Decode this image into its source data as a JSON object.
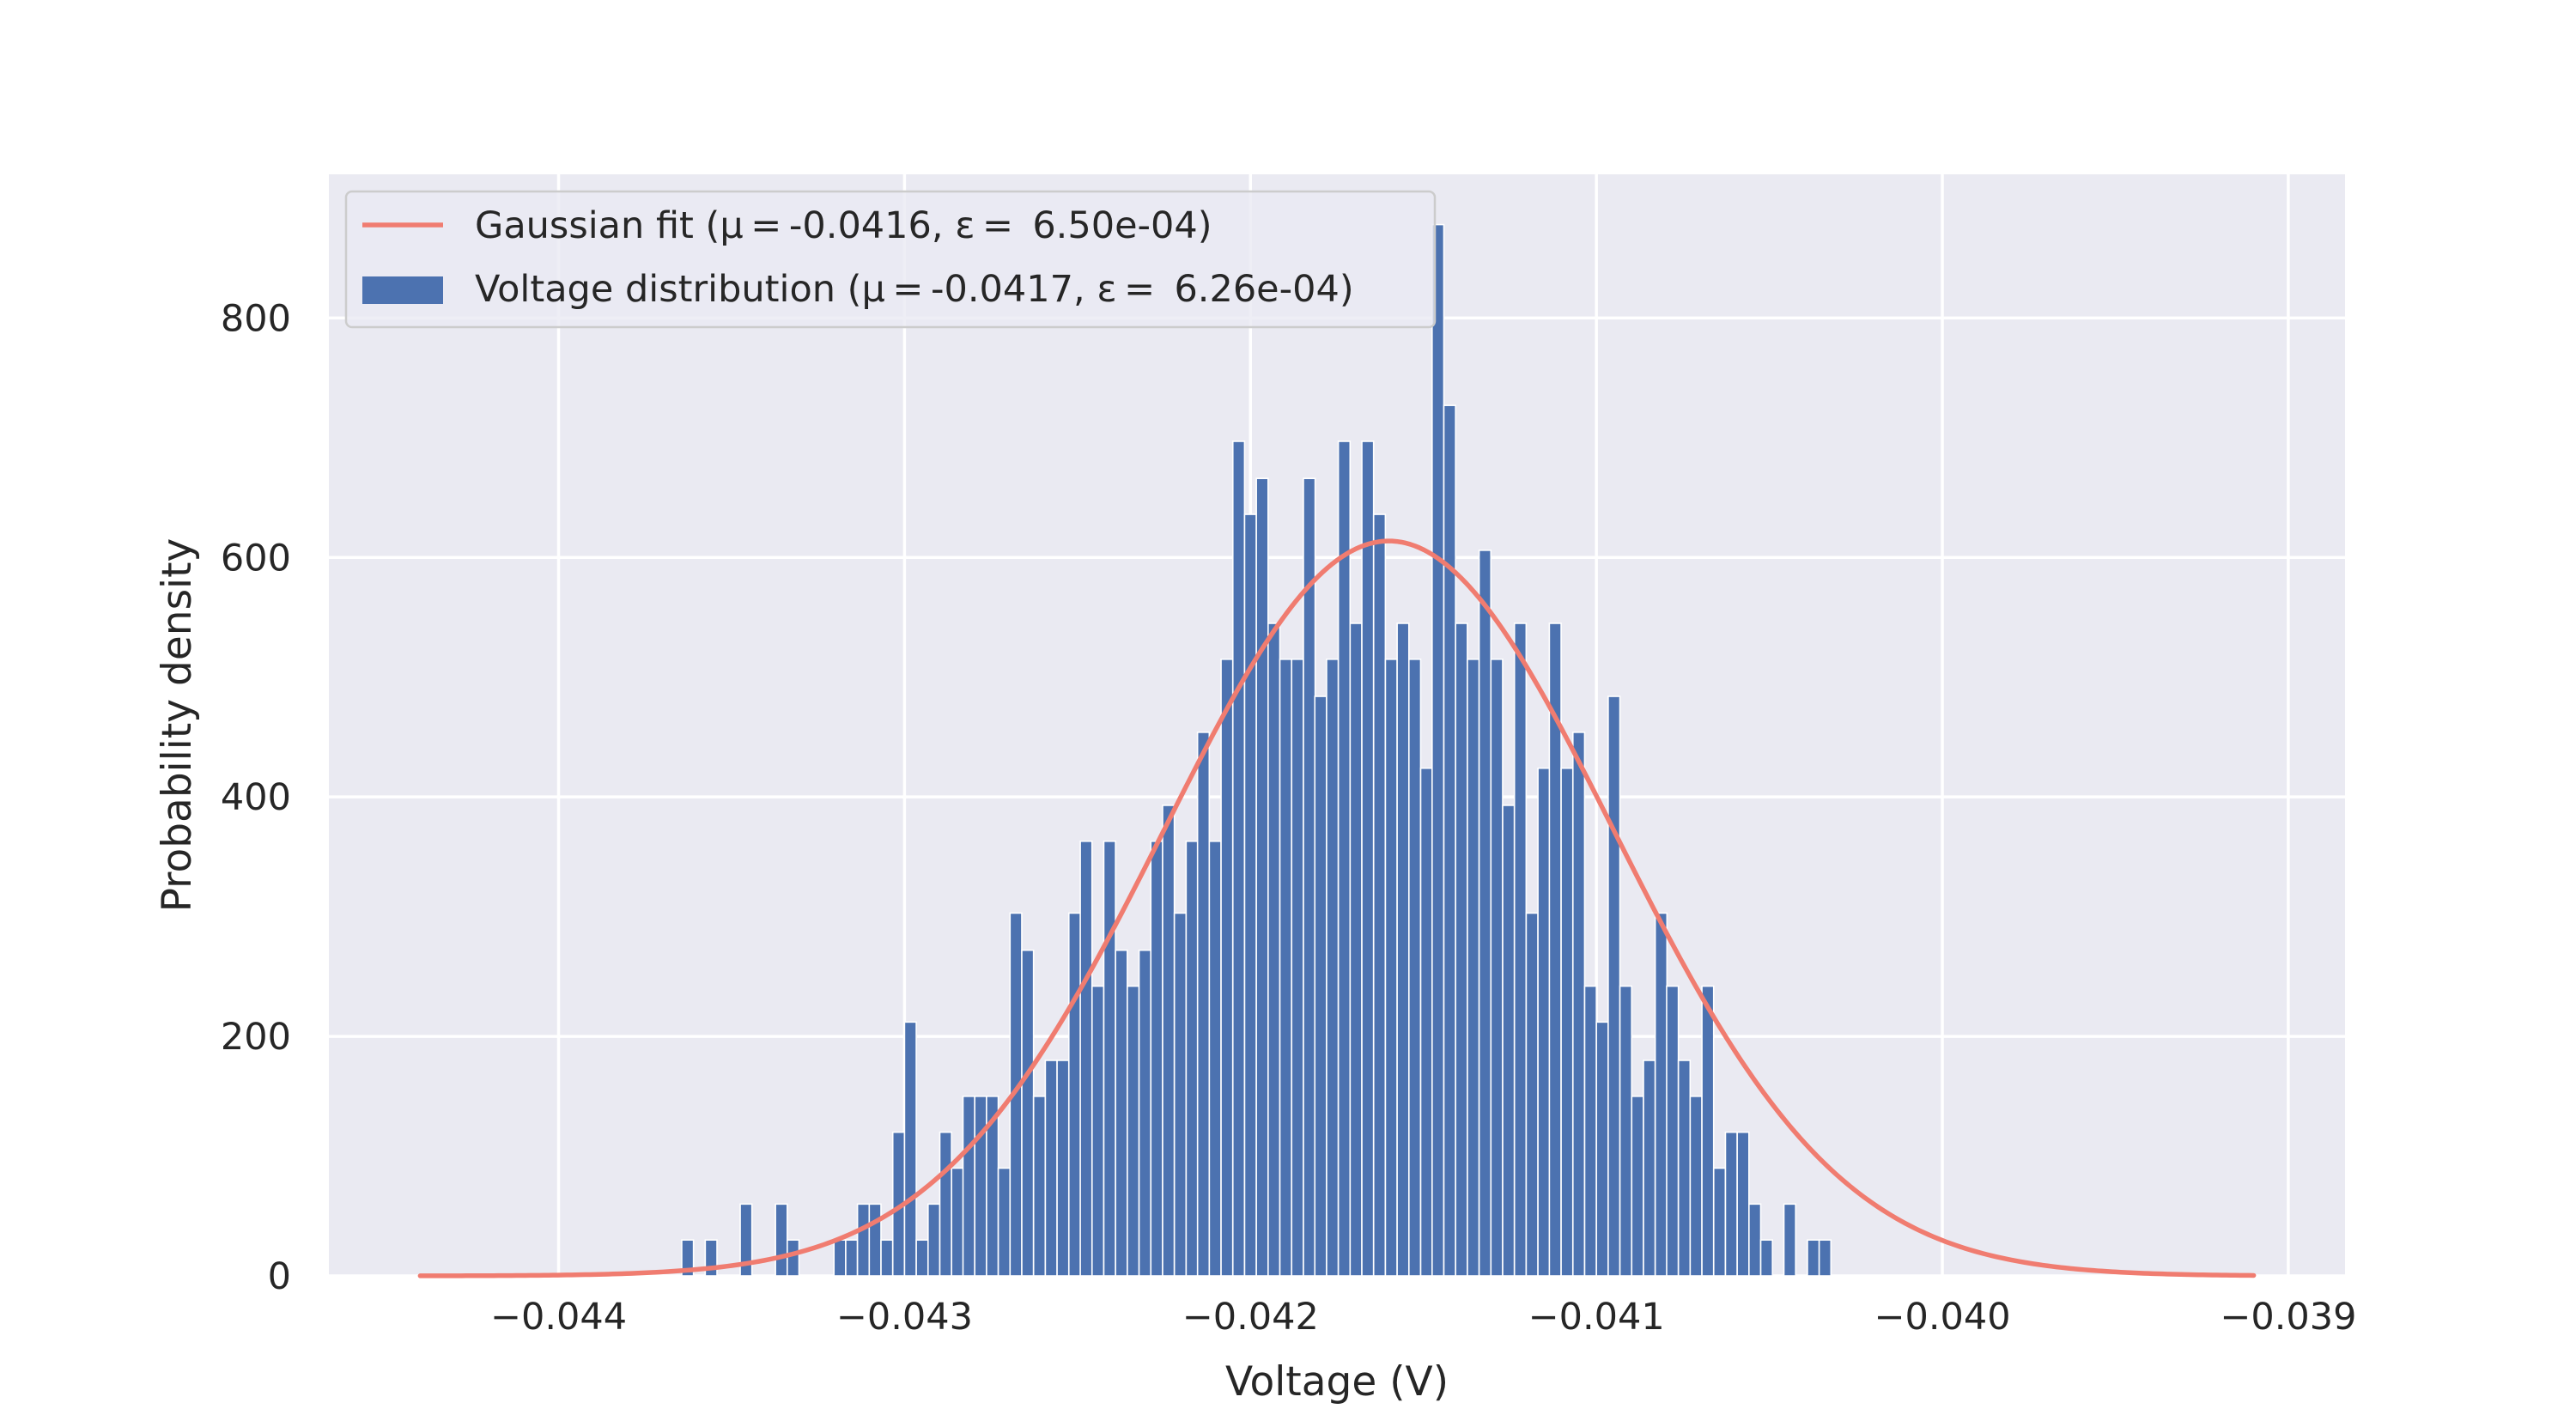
{
  "chart_data": {
    "type": "bar",
    "xlabel": "Voltage (V)",
    "ylabel": "Probability density",
    "xlim": [
      -0.044664,
      -0.038836
    ],
    "ylim": [
      0,
      920
    ],
    "xticks": [
      -0.044,
      -0.043,
      -0.042,
      -0.041,
      -0.04,
      -0.039
    ],
    "xtick_labels": [
      "−0.044",
      "−0.043",
      "−0.042",
      "−0.041",
      "−0.040",
      "−0.039"
    ],
    "yticks": [
      0,
      200,
      400,
      600,
      800
    ],
    "ytick_labels": [
      "0",
      "200",
      "400",
      "600",
      "800"
    ],
    "grid": true,
    "legend_position": "top-left",
    "legend": [
      {
        "kind": "line",
        "label": "Gaussian fit (μ = -0.0416, ε =  6.50e-04)",
        "color": "#f07c70"
      },
      {
        "kind": "bar",
        "label": "Voltage distribution (μ = -0.0417, ε =  6.26e-04)",
        "color": "#4c72b0"
      }
    ],
    "histogram": {
      "color": "#4c72b0",
      "bin_width": 3.39e-05,
      "bins": [
        {
          "x": -0.043627,
          "y": 30
        },
        {
          "x": -0.043559,
          "y": 30
        },
        {
          "x": -0.043458,
          "y": 60
        },
        {
          "x": -0.043356,
          "y": 60
        },
        {
          "x": -0.043322,
          "y": 30
        },
        {
          "x": -0.043187,
          "y": 30
        },
        {
          "x": -0.043153,
          "y": 30
        },
        {
          "x": -0.043119,
          "y": 60
        },
        {
          "x": -0.043085,
          "y": 60
        },
        {
          "x": -0.043051,
          "y": 30
        },
        {
          "x": -0.043017,
          "y": 120
        },
        {
          "x": -0.042983,
          "y": 212
        },
        {
          "x": -0.042949,
          "y": 30
        },
        {
          "x": -0.042915,
          "y": 60
        },
        {
          "x": -0.042881,
          "y": 120
        },
        {
          "x": -0.042847,
          "y": 90
        },
        {
          "x": -0.042814,
          "y": 150
        },
        {
          "x": -0.04278,
          "y": 150
        },
        {
          "x": -0.042746,
          "y": 150
        },
        {
          "x": -0.042712,
          "y": 90
        },
        {
          "x": -0.042678,
          "y": 303
        },
        {
          "x": -0.042644,
          "y": 272
        },
        {
          "x": -0.04261,
          "y": 150
        },
        {
          "x": -0.042576,
          "y": 180
        },
        {
          "x": -0.042542,
          "y": 180
        },
        {
          "x": -0.042508,
          "y": 303
        },
        {
          "x": -0.042475,
          "y": 363
        },
        {
          "x": -0.042441,
          "y": 242
        },
        {
          "x": -0.042407,
          "y": 363
        },
        {
          "x": -0.042373,
          "y": 272
        },
        {
          "x": -0.042339,
          "y": 242
        },
        {
          "x": -0.042305,
          "y": 272
        },
        {
          "x": -0.042271,
          "y": 363
        },
        {
          "x": -0.042237,
          "y": 393
        },
        {
          "x": -0.042203,
          "y": 303
        },
        {
          "x": -0.042169,
          "y": 363
        },
        {
          "x": -0.042136,
          "y": 454
        },
        {
          "x": -0.042102,
          "y": 363
        },
        {
          "x": -0.042068,
          "y": 515
        },
        {
          "x": -0.042034,
          "y": 697
        },
        {
          "x": -0.042,
          "y": 636
        },
        {
          "x": -0.041966,
          "y": 666
        },
        {
          "x": -0.041932,
          "y": 545
        },
        {
          "x": -0.041898,
          "y": 515
        },
        {
          "x": -0.041864,
          "y": 515
        },
        {
          "x": -0.04183,
          "y": 666
        },
        {
          "x": -0.041797,
          "y": 484
        },
        {
          "x": -0.041763,
          "y": 515
        },
        {
          "x": -0.041729,
          "y": 697
        },
        {
          "x": -0.041695,
          "y": 545
        },
        {
          "x": -0.041661,
          "y": 697
        },
        {
          "x": -0.041627,
          "y": 636
        },
        {
          "x": -0.041593,
          "y": 515
        },
        {
          "x": -0.041559,
          "y": 545
        },
        {
          "x": -0.041525,
          "y": 515
        },
        {
          "x": -0.041491,
          "y": 424
        },
        {
          "x": -0.041458,
          "y": 878
        },
        {
          "x": -0.041424,
          "y": 727
        },
        {
          "x": -0.04139,
          "y": 545
        },
        {
          "x": -0.041356,
          "y": 515
        },
        {
          "x": -0.041322,
          "y": 606
        },
        {
          "x": -0.041288,
          "y": 515
        },
        {
          "x": -0.041254,
          "y": 393
        },
        {
          "x": -0.04122,
          "y": 545
        },
        {
          "x": -0.041186,
          "y": 303
        },
        {
          "x": -0.041152,
          "y": 424
        },
        {
          "x": -0.041119,
          "y": 545
        },
        {
          "x": -0.041085,
          "y": 424
        },
        {
          "x": -0.041051,
          "y": 454
        },
        {
          "x": -0.041017,
          "y": 242
        },
        {
          "x": -0.040983,
          "y": 212
        },
        {
          "x": -0.040949,
          "y": 484
        },
        {
          "x": -0.040915,
          "y": 242
        },
        {
          "x": -0.040881,
          "y": 150
        },
        {
          "x": -0.040847,
          "y": 180
        },
        {
          "x": -0.040813,
          "y": 303
        },
        {
          "x": -0.04078,
          "y": 242
        },
        {
          "x": -0.040746,
          "y": 180
        },
        {
          "x": -0.040712,
          "y": 150
        },
        {
          "x": -0.040678,
          "y": 242
        },
        {
          "x": -0.040644,
          "y": 90
        },
        {
          "x": -0.04061,
          "y": 120
        },
        {
          "x": -0.040576,
          "y": 120
        },
        {
          "x": -0.040542,
          "y": 60
        },
        {
          "x": -0.040508,
          "y": 30
        },
        {
          "x": -0.040441,
          "y": 60
        },
        {
          "x": -0.040373,
          "y": 30
        },
        {
          "x": -0.040339,
          "y": 30
        }
      ]
    },
    "gaussian_fit": {
      "color": "#f07c70",
      "mu": -0.0416,
      "sigma": 0.00065,
      "x_range": [
        -0.0444,
        -0.0391
      ]
    }
  }
}
